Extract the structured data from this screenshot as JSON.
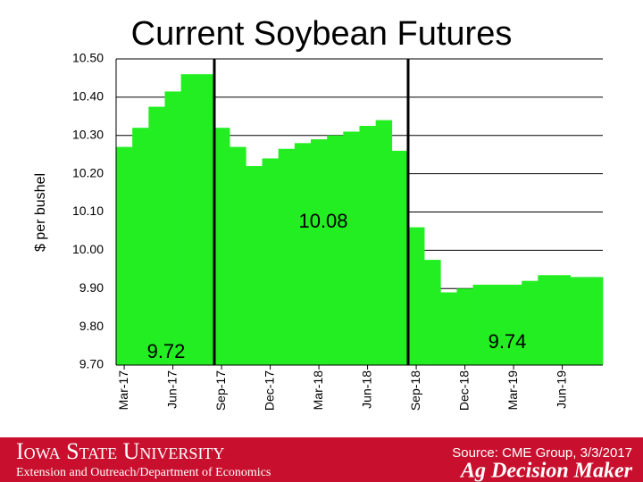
{
  "chart_data": {
    "type": "bar",
    "title": "Current Soybean Futures",
    "y_label": "$ per bushel",
    "categories": [
      "Mar-17",
      null,
      null,
      "Jun-17",
      null,
      null,
      "Sep-17",
      null,
      null,
      "Dec-17",
      null,
      null,
      "Mar-18",
      null,
      null,
      "Jun-18",
      null,
      null,
      "Sep-18",
      null,
      null,
      "Dec-18",
      null,
      null,
      "Mar-19",
      null,
      null,
      "Jun-19",
      null,
      null
    ],
    "values": [
      10.27,
      10.32,
      10.375,
      10.415,
      10.46,
      10.46,
      10.32,
      10.27,
      10.22,
      10.24,
      10.265,
      10.28,
      10.29,
      10.3,
      10.31,
      10.325,
      10.34,
      10.26,
      10.06,
      9.975,
      9.89,
      9.9,
      9.91,
      9.91,
      9.91,
      9.92,
      9.935,
      9.935,
      9.93,
      9.93
    ],
    "color": "#22ee22",
    "ylim": [
      9.7,
      10.5
    ],
    "yticks": [
      {
        "value": 9.7,
        "label": "9.70"
      },
      {
        "value": 9.8,
        "label": "9.80"
      },
      {
        "value": 9.9,
        "label": "9.90"
      },
      {
        "value": 10.0,
        "label": "10.00"
      },
      {
        "value": 10.1,
        "label": "10.10"
      },
      {
        "value": 10.2,
        "label": "10.20"
      },
      {
        "value": 10.3,
        "label": "10.30"
      },
      {
        "value": 10.4,
        "label": "10.40"
      },
      {
        "value": 10.5,
        "label": "10.50"
      }
    ],
    "grid": true,
    "annotations": [
      "10.08",
      "9.72",
      "9.74"
    ]
  },
  "footer": {
    "university": "Iowa State University",
    "department": "Extension and Outreach/Department of Economics",
    "source": "Source: CME Group, 3/3/2017",
    "brand": "Ag Decision Maker"
  }
}
